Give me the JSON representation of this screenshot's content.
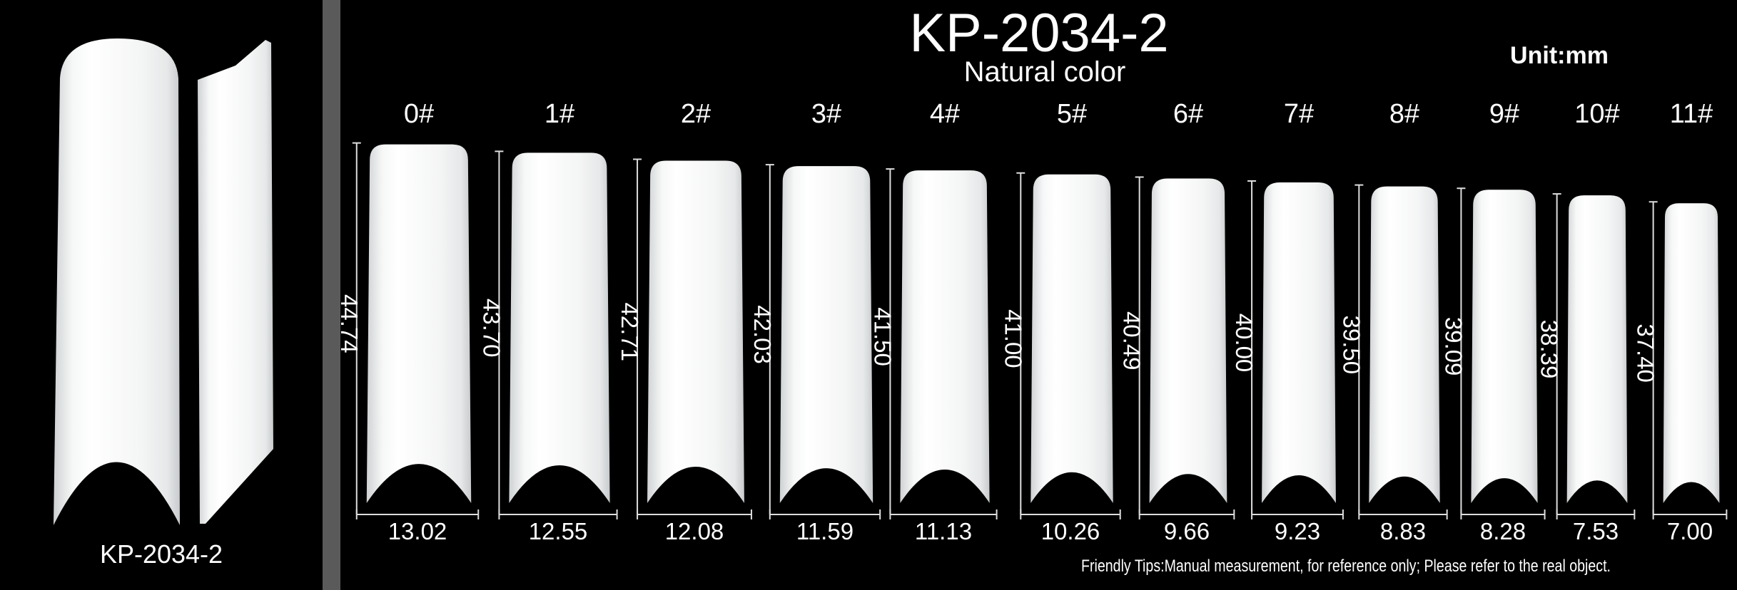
{
  "title": "KP-2034-2",
  "subtitle": "Natural color",
  "unit": "Unit:mm",
  "product_label": "KP-2034-2",
  "sizes": [
    {
      "label": "0#",
      "length": "44.74",
      "width": "13.02"
    },
    {
      "label": "1#",
      "length": "43.70",
      "width": "12.55"
    },
    {
      "label": "2#",
      "length": "42.71",
      "width": "12.08"
    },
    {
      "label": "3#",
      "length": "42.03",
      "width": "11.59"
    },
    {
      "label": "4#",
      "length": "41.50",
      "width": "11.13"
    },
    {
      "label": "5#",
      "length": "41.00",
      "width": "10.26"
    },
    {
      "label": "6#",
      "length": "40.49",
      "width": "9.66"
    },
    {
      "label": "7#",
      "length": "40.00",
      "width": "9.23"
    },
    {
      "label": "8#",
      "length": "39.50",
      "width": "8.83"
    },
    {
      "label": "9#",
      "length": "39.09",
      "width": "8.28"
    },
    {
      "label": "10#",
      "length": "38.39",
      "width": "7.53"
    },
    {
      "label": "11#",
      "length": "37.40",
      "width": "7.00"
    }
  ],
  "tip": "Friendly Tips:Manual measurement, for reference only; Please refer to the real object."
}
